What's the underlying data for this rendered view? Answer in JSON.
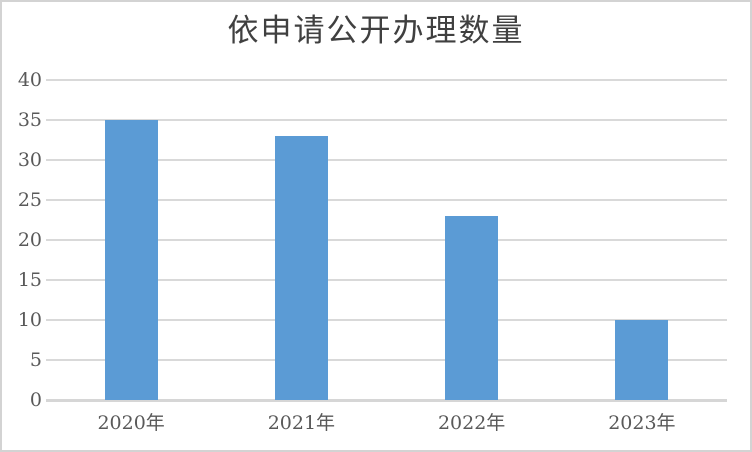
{
  "chart_data": {
    "type": "bar",
    "title": "依申请公开办理数量",
    "categories": [
      "2020年",
      "2021年",
      "2022年",
      "2023年"
    ],
    "values": [
      35,
      33,
      23,
      10
    ],
    "xlabel": "",
    "ylabel": "",
    "ylim": [
      0,
      40
    ],
    "ytick_step": 5,
    "ytick_labels": [
      "0",
      "5",
      "10",
      "15",
      "20",
      "25",
      "30",
      "35",
      "40"
    ],
    "grid": true,
    "legend_position": "none",
    "colors": {
      "bar": "#5b9bd5",
      "gridline": "#d9d9d9",
      "axis_line": "#d6d6d6",
      "tick_text": "#595959",
      "title_text": "#404040",
      "frame_border": "#d3d3d3",
      "background": "#ffffff"
    }
  }
}
